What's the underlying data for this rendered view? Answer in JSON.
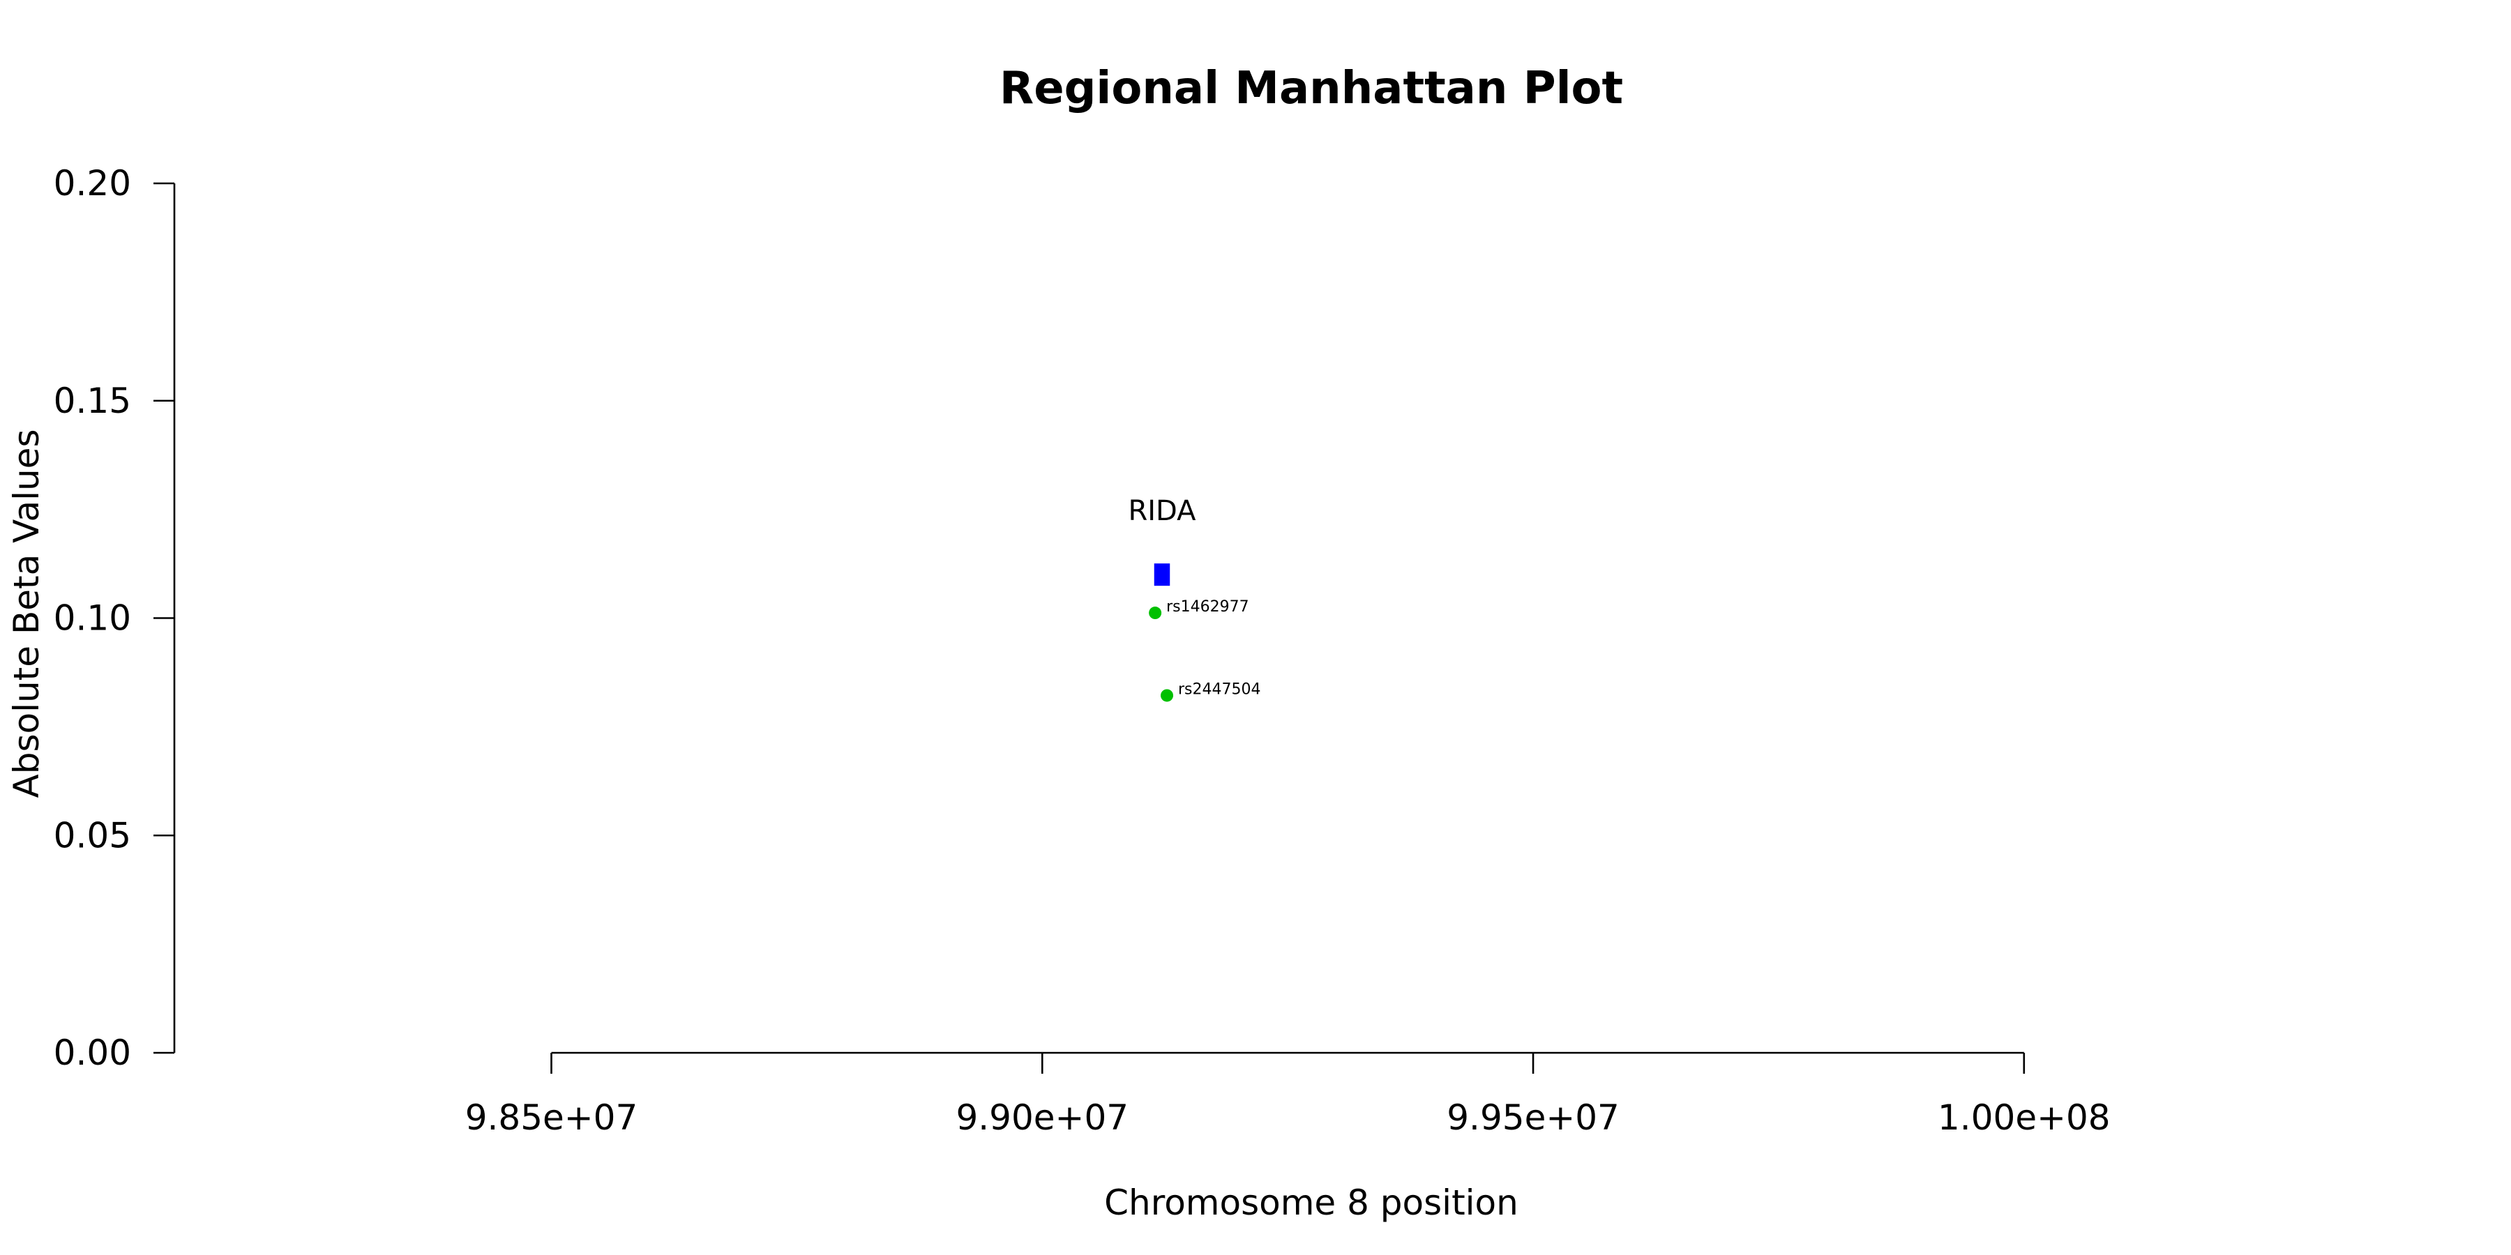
{
  "chart_data": {
    "type": "scatter",
    "title": "Regional Manhattan Plot",
    "xlabel": "Chromosome 8 position",
    "ylabel": "Absolute Beta Values",
    "xlim": [
      98116000,
      100290000
    ],
    "ylim": [
      0,
      0.2
    ],
    "x_ticks": [
      98500000,
      99000000,
      99500000,
      100000000
    ],
    "x_tick_labels": [
      "9.85e+07",
      "9.90e+07",
      "9.95e+07",
      "1.00e+08"
    ],
    "y_ticks": [
      0,
      0.05,
      0.1,
      0.15,
      0.2
    ],
    "y_tick_labels": [
      "0.00",
      "0.05",
      "0.10",
      "0.15",
      "0.20"
    ],
    "grid": false,
    "genes": [
      {
        "name": "RIDA",
        "start": 99114000,
        "end": 99130000,
        "y": 0.11,
        "color": "#0000ff"
      }
    ],
    "series": [
      {
        "color": "#00c000",
        "points": [
          {
            "label": "rs1462977",
            "x": 99115000,
            "y": 0.1012
          },
          {
            "label": "rs2447504",
            "x": 99127000,
            "y": 0.0822
          }
        ]
      }
    ]
  }
}
